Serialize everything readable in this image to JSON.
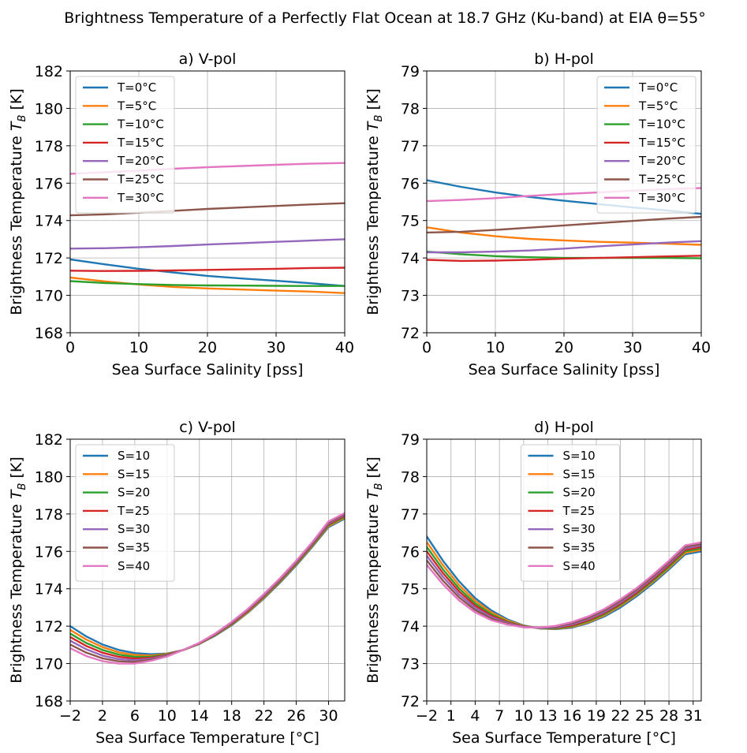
{
  "figure": {
    "title": "Brightness Temperature of a Perfectly Flat Ocean at 18.7 GHz (Ku-band) at EIA θ=55°"
  },
  "colors": [
    "#1f77b4",
    "#ff7f0e",
    "#2ca02c",
    "#d62728",
    "#9467bd",
    "#8c564b",
    "#e377c2"
  ],
  "chart_data": [
    {
      "id": "a",
      "type": "line",
      "title": "a) V-pol",
      "xlabel": "Sea Surface Salinity [pss]",
      "ylabel": "Brightness Temperature T_B [K]",
      "xlim": [
        0,
        40
      ],
      "ylim": [
        168,
        182
      ],
      "xticks": [
        0,
        10,
        20,
        30,
        40
      ],
      "yticks": [
        168,
        170,
        172,
        174,
        176,
        178,
        180,
        182
      ],
      "grid": true,
      "legend": "top-left",
      "x": [
        0,
        5,
        10,
        15,
        20,
        25,
        30,
        35,
        40
      ],
      "series": [
        {
          "name": "T=0°C",
          "values": [
            171.92,
            171.66,
            171.42,
            171.22,
            171.04,
            170.9,
            170.78,
            170.65,
            170.5
          ]
        },
        {
          "name": "T=5°C",
          "values": [
            170.95,
            170.75,
            170.58,
            170.45,
            170.37,
            170.31,
            170.25,
            170.2,
            170.12
          ]
        },
        {
          "name": "T=10°C",
          "values": [
            170.76,
            170.66,
            170.6,
            170.55,
            170.53,
            170.52,
            170.51,
            170.5,
            170.5
          ]
        },
        {
          "name": "T=15°C",
          "values": [
            171.32,
            171.3,
            171.31,
            171.33,
            171.36,
            171.39,
            171.42,
            171.46,
            171.48
          ]
        },
        {
          "name": "T=20°C",
          "values": [
            172.5,
            172.52,
            172.57,
            172.64,
            172.72,
            172.79,
            172.86,
            172.93,
            173.0
          ]
        },
        {
          "name": "T=25°C",
          "values": [
            174.28,
            174.33,
            174.42,
            174.52,
            174.62,
            174.7,
            174.78,
            174.86,
            174.93
          ]
        },
        {
          "name": "T=30°C",
          "values": [
            176.5,
            176.58,
            176.67,
            176.77,
            176.85,
            176.92,
            176.98,
            177.04,
            177.08
          ]
        }
      ]
    },
    {
      "id": "b",
      "type": "line",
      "title": "b) H-pol",
      "xlabel": "Sea Surface Salinity [pss]",
      "ylabel": "Brightness Temperature T_B [K]",
      "xlim": [
        0,
        40
      ],
      "ylim": [
        72,
        79
      ],
      "xticks": [
        0,
        10,
        20,
        30,
        40
      ],
      "yticks": [
        72,
        73,
        74,
        75,
        76,
        77,
        78,
        79
      ],
      "grid": true,
      "legend": "top-right",
      "x": [
        0,
        5,
        10,
        15,
        20,
        25,
        30,
        35,
        40
      ],
      "series": [
        {
          "name": "T=0°C",
          "values": [
            76.08,
            75.9,
            75.75,
            75.63,
            75.53,
            75.44,
            75.35,
            75.27,
            75.18
          ]
        },
        {
          "name": "T=5°C",
          "values": [
            74.82,
            74.68,
            74.58,
            74.51,
            74.47,
            74.43,
            74.41,
            74.38,
            74.35
          ]
        },
        {
          "name": "T=10°C",
          "values": [
            74.17,
            74.1,
            74.05,
            74.02,
            74.0,
            74.0,
            74.0,
            74.0,
            73.99
          ]
        },
        {
          "name": "T=15°C",
          "values": [
            73.95,
            73.92,
            73.93,
            73.95,
            73.98,
            74.0,
            74.02,
            74.04,
            74.06
          ]
        },
        {
          "name": "T=20°C",
          "values": [
            74.15,
            74.15,
            74.17,
            74.2,
            74.25,
            74.31,
            74.36,
            74.41,
            74.45
          ]
        },
        {
          "name": "T=25°C",
          "values": [
            74.68,
            74.7,
            74.75,
            74.81,
            74.87,
            74.93,
            74.99,
            75.05,
            75.1
          ]
        },
        {
          "name": "T=30°C",
          "values": [
            75.52,
            75.55,
            75.6,
            75.66,
            75.71,
            75.75,
            75.8,
            75.84,
            75.87
          ]
        }
      ]
    },
    {
      "id": "c",
      "type": "line",
      "title": "c) V-pol",
      "xlabel": "Sea Surface Temperature  [°C]",
      "ylabel": "Brightness Temperature T_B [K]",
      "xlim": [
        -2,
        32
      ],
      "ylim": [
        168,
        182
      ],
      "xticks": [
        -2,
        2,
        6,
        10,
        14,
        18,
        22,
        26,
        30
      ],
      "xticklabels": [
        "−2",
        "2",
        "6",
        "10",
        "14",
        "18",
        "22",
        "26",
        "30"
      ],
      "yticks": [
        168,
        170,
        172,
        174,
        176,
        178,
        180,
        182
      ],
      "grid": true,
      "legend": "top-left",
      "x": [
        -2,
        0,
        2,
        4,
        6,
        8,
        10,
        12,
        14,
        16,
        18,
        20,
        22,
        24,
        26,
        28,
        30,
        32
      ],
      "series": [
        {
          "name": "S=10",
          "values": [
            172.0,
            171.45,
            171.02,
            170.73,
            170.56,
            170.5,
            170.54,
            170.72,
            171.05,
            171.5,
            172.05,
            172.72,
            173.48,
            174.33,
            175.25,
            176.25,
            177.3,
            177.75
          ]
        },
        {
          "name": "S=15",
          "values": [
            171.8,
            171.28,
            170.88,
            170.6,
            170.46,
            170.43,
            170.52,
            170.72,
            171.06,
            171.52,
            172.08,
            172.75,
            173.52,
            174.37,
            175.29,
            176.29,
            177.35,
            177.8
          ]
        },
        {
          "name": "S=20",
          "values": [
            171.6,
            171.1,
            170.73,
            170.48,
            170.36,
            170.37,
            170.5,
            170.72,
            171.07,
            171.54,
            172.11,
            172.79,
            173.56,
            174.41,
            175.33,
            176.33,
            177.4,
            177.85
          ]
        },
        {
          "name": "T=25",
          "values": [
            171.42,
            170.94,
            170.58,
            170.36,
            170.27,
            170.31,
            170.47,
            170.73,
            171.08,
            171.56,
            172.14,
            172.82,
            173.6,
            174.45,
            175.38,
            176.38,
            177.45,
            177.9
          ]
        },
        {
          "name": "S=30",
          "values": [
            171.22,
            170.76,
            170.43,
            170.24,
            170.18,
            170.25,
            170.44,
            170.73,
            171.09,
            171.58,
            172.17,
            172.86,
            173.64,
            174.49,
            175.42,
            176.42,
            177.5,
            177.95
          ]
        },
        {
          "name": "S=35",
          "values": [
            171.02,
            170.58,
            170.28,
            170.12,
            170.09,
            170.2,
            170.41,
            170.73,
            171.1,
            171.6,
            172.2,
            172.89,
            173.68,
            174.53,
            175.46,
            176.46,
            177.55,
            178.0
          ]
        },
        {
          "name": "S=40",
          "values": [
            170.82,
            170.4,
            170.13,
            170.0,
            170.0,
            170.15,
            170.38,
            170.73,
            171.11,
            171.62,
            172.23,
            172.92,
            173.72,
            174.57,
            175.5,
            176.5,
            177.6,
            178.05
          ]
        }
      ]
    },
    {
      "id": "d",
      "type": "line",
      "title": "d) H-pol",
      "xlabel": "Sea Surface Temperature  [°C]",
      "ylabel": "Brightness Temperature T_B [K]",
      "xlim": [
        -2,
        32
      ],
      "ylim": [
        72,
        79
      ],
      "xticks": [
        -2,
        1,
        4,
        7,
        10,
        13,
        16,
        19,
        22,
        25,
        28,
        31
      ],
      "xticklabels": [
        "−2",
        "1",
        "4",
        "7",
        "10",
        "13",
        "16",
        "19",
        "22",
        "25",
        "28",
        "31"
      ],
      "yticks": [
        72,
        73,
        74,
        75,
        76,
        77,
        78,
        79
      ],
      "grid": true,
      "legend": "top-center",
      "x": [
        -2,
        0,
        2,
        4,
        6,
        8,
        10,
        12,
        14,
        16,
        18,
        20,
        22,
        24,
        26,
        28,
        30,
        32
      ],
      "series": [
        {
          "name": "S=10",
          "values": [
            76.4,
            75.75,
            75.2,
            74.75,
            74.42,
            74.18,
            74.02,
            73.94,
            73.92,
            73.96,
            74.08,
            74.26,
            74.5,
            74.8,
            75.14,
            75.52,
            75.92,
            76.0
          ]
        },
        {
          "name": "S=15",
          "values": [
            76.25,
            75.63,
            75.1,
            74.68,
            74.37,
            74.15,
            74.01,
            73.94,
            73.93,
            73.98,
            74.1,
            74.29,
            74.54,
            74.84,
            75.18,
            75.56,
            75.96,
            76.04
          ]
        },
        {
          "name": "S=20",
          "values": [
            76.12,
            75.52,
            75.01,
            74.61,
            74.32,
            74.12,
            74.0,
            73.94,
            73.94,
            74.0,
            74.13,
            74.32,
            74.57,
            74.87,
            75.21,
            75.59,
            76.0,
            76.08
          ]
        },
        {
          "name": "T=25",
          "values": [
            76.0,
            75.42,
            74.93,
            74.55,
            74.28,
            74.1,
            73.99,
            73.95,
            73.96,
            74.02,
            74.16,
            74.35,
            74.6,
            74.9,
            75.25,
            75.63,
            76.04,
            76.12
          ]
        },
        {
          "name": "S=30",
          "values": [
            75.88,
            75.32,
            74.85,
            74.49,
            74.24,
            74.08,
            73.98,
            73.95,
            73.97,
            74.05,
            74.19,
            74.38,
            74.64,
            74.94,
            75.29,
            75.67,
            76.08,
            76.16
          ]
        },
        {
          "name": "S=35",
          "values": [
            75.76,
            75.22,
            74.77,
            74.43,
            74.2,
            74.06,
            73.97,
            73.96,
            73.99,
            74.08,
            74.22,
            74.42,
            74.68,
            74.98,
            75.33,
            75.71,
            76.12,
            76.2
          ]
        },
        {
          "name": "S=40",
          "values": [
            75.64,
            75.12,
            74.69,
            74.37,
            74.16,
            74.04,
            73.97,
            73.96,
            74.01,
            74.11,
            74.26,
            74.46,
            74.72,
            75.02,
            75.37,
            75.75,
            76.16,
            76.24
          ]
        }
      ]
    }
  ]
}
